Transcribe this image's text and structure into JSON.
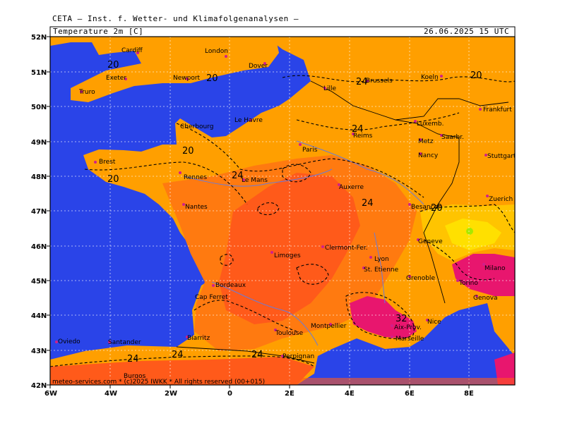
{
  "header": {
    "agency": "CETA — Inst. f. Wetter- und Klimafolgenanalysen —",
    "parameter": "Temperature 2m [C]",
    "valid_time": "26.06.2025 15 UTC"
  },
  "axes": {
    "lat_labels": [
      "52N",
      "51N",
      "50N",
      "49N",
      "48N",
      "47N",
      "46N",
      "45N",
      "44N",
      "43N",
      "42N"
    ],
    "lon_labels": [
      "6W",
      "4W",
      "2W",
      "0",
      "2E",
      "4E",
      "6E",
      "8E"
    ]
  },
  "isolines": [
    {
      "label": "20"
    },
    {
      "label": "20"
    },
    {
      "label": "24"
    },
    {
      "label": "24"
    },
    {
      "label": "20"
    },
    {
      "label": "24"
    },
    {
      "label": "24"
    },
    {
      "label": "20"
    },
    {
      "label": "20"
    },
    {
      "label": "32"
    },
    {
      "label": "24"
    },
    {
      "label": "24"
    },
    {
      "label": "24"
    },
    {
      "label": "20"
    }
  ],
  "cities": [
    "Cardiff",
    "London",
    "Exeter",
    "Newport",
    "Dover",
    "Truro",
    "Lille",
    "Brussels",
    "Koeln",
    "Frankfurt",
    "Le Havre",
    "Cherbourg",
    "Reims",
    "Luxemb.",
    "Saarbr.",
    "Paris",
    "Metz",
    "Brest",
    "Rennes",
    "Le Mans",
    "Nancy",
    "Stuttgart",
    "Auxerre",
    "Nantes",
    "Besancon",
    "Zuerich",
    "Geneve",
    "Clermont-Fer.",
    "Limoges",
    "Lyon",
    "St. Etienne",
    "Grenoble",
    "Milano",
    "Bordeaux",
    "Cap Ferret",
    "Genova",
    "Torino",
    "Montpellier",
    "Aix-Prov.",
    "Nice",
    "Marseille",
    "Biarritz",
    "Toulouse",
    "Oviedo",
    "Santander",
    "Perpignan",
    "Burgos"
  ],
  "footer": "meteo-services.com * (c)2025 IWKK * All rights reserved (00+015)",
  "colors": {
    "sea": "#2a44e8",
    "land_base": "#ff9f00",
    "land_warm": "#ff7a10",
    "land_hot": "#ff5a1a",
    "extreme": "#e8166e",
    "cool": "#ffc400",
    "alpine": "#ffe000"
  }
}
